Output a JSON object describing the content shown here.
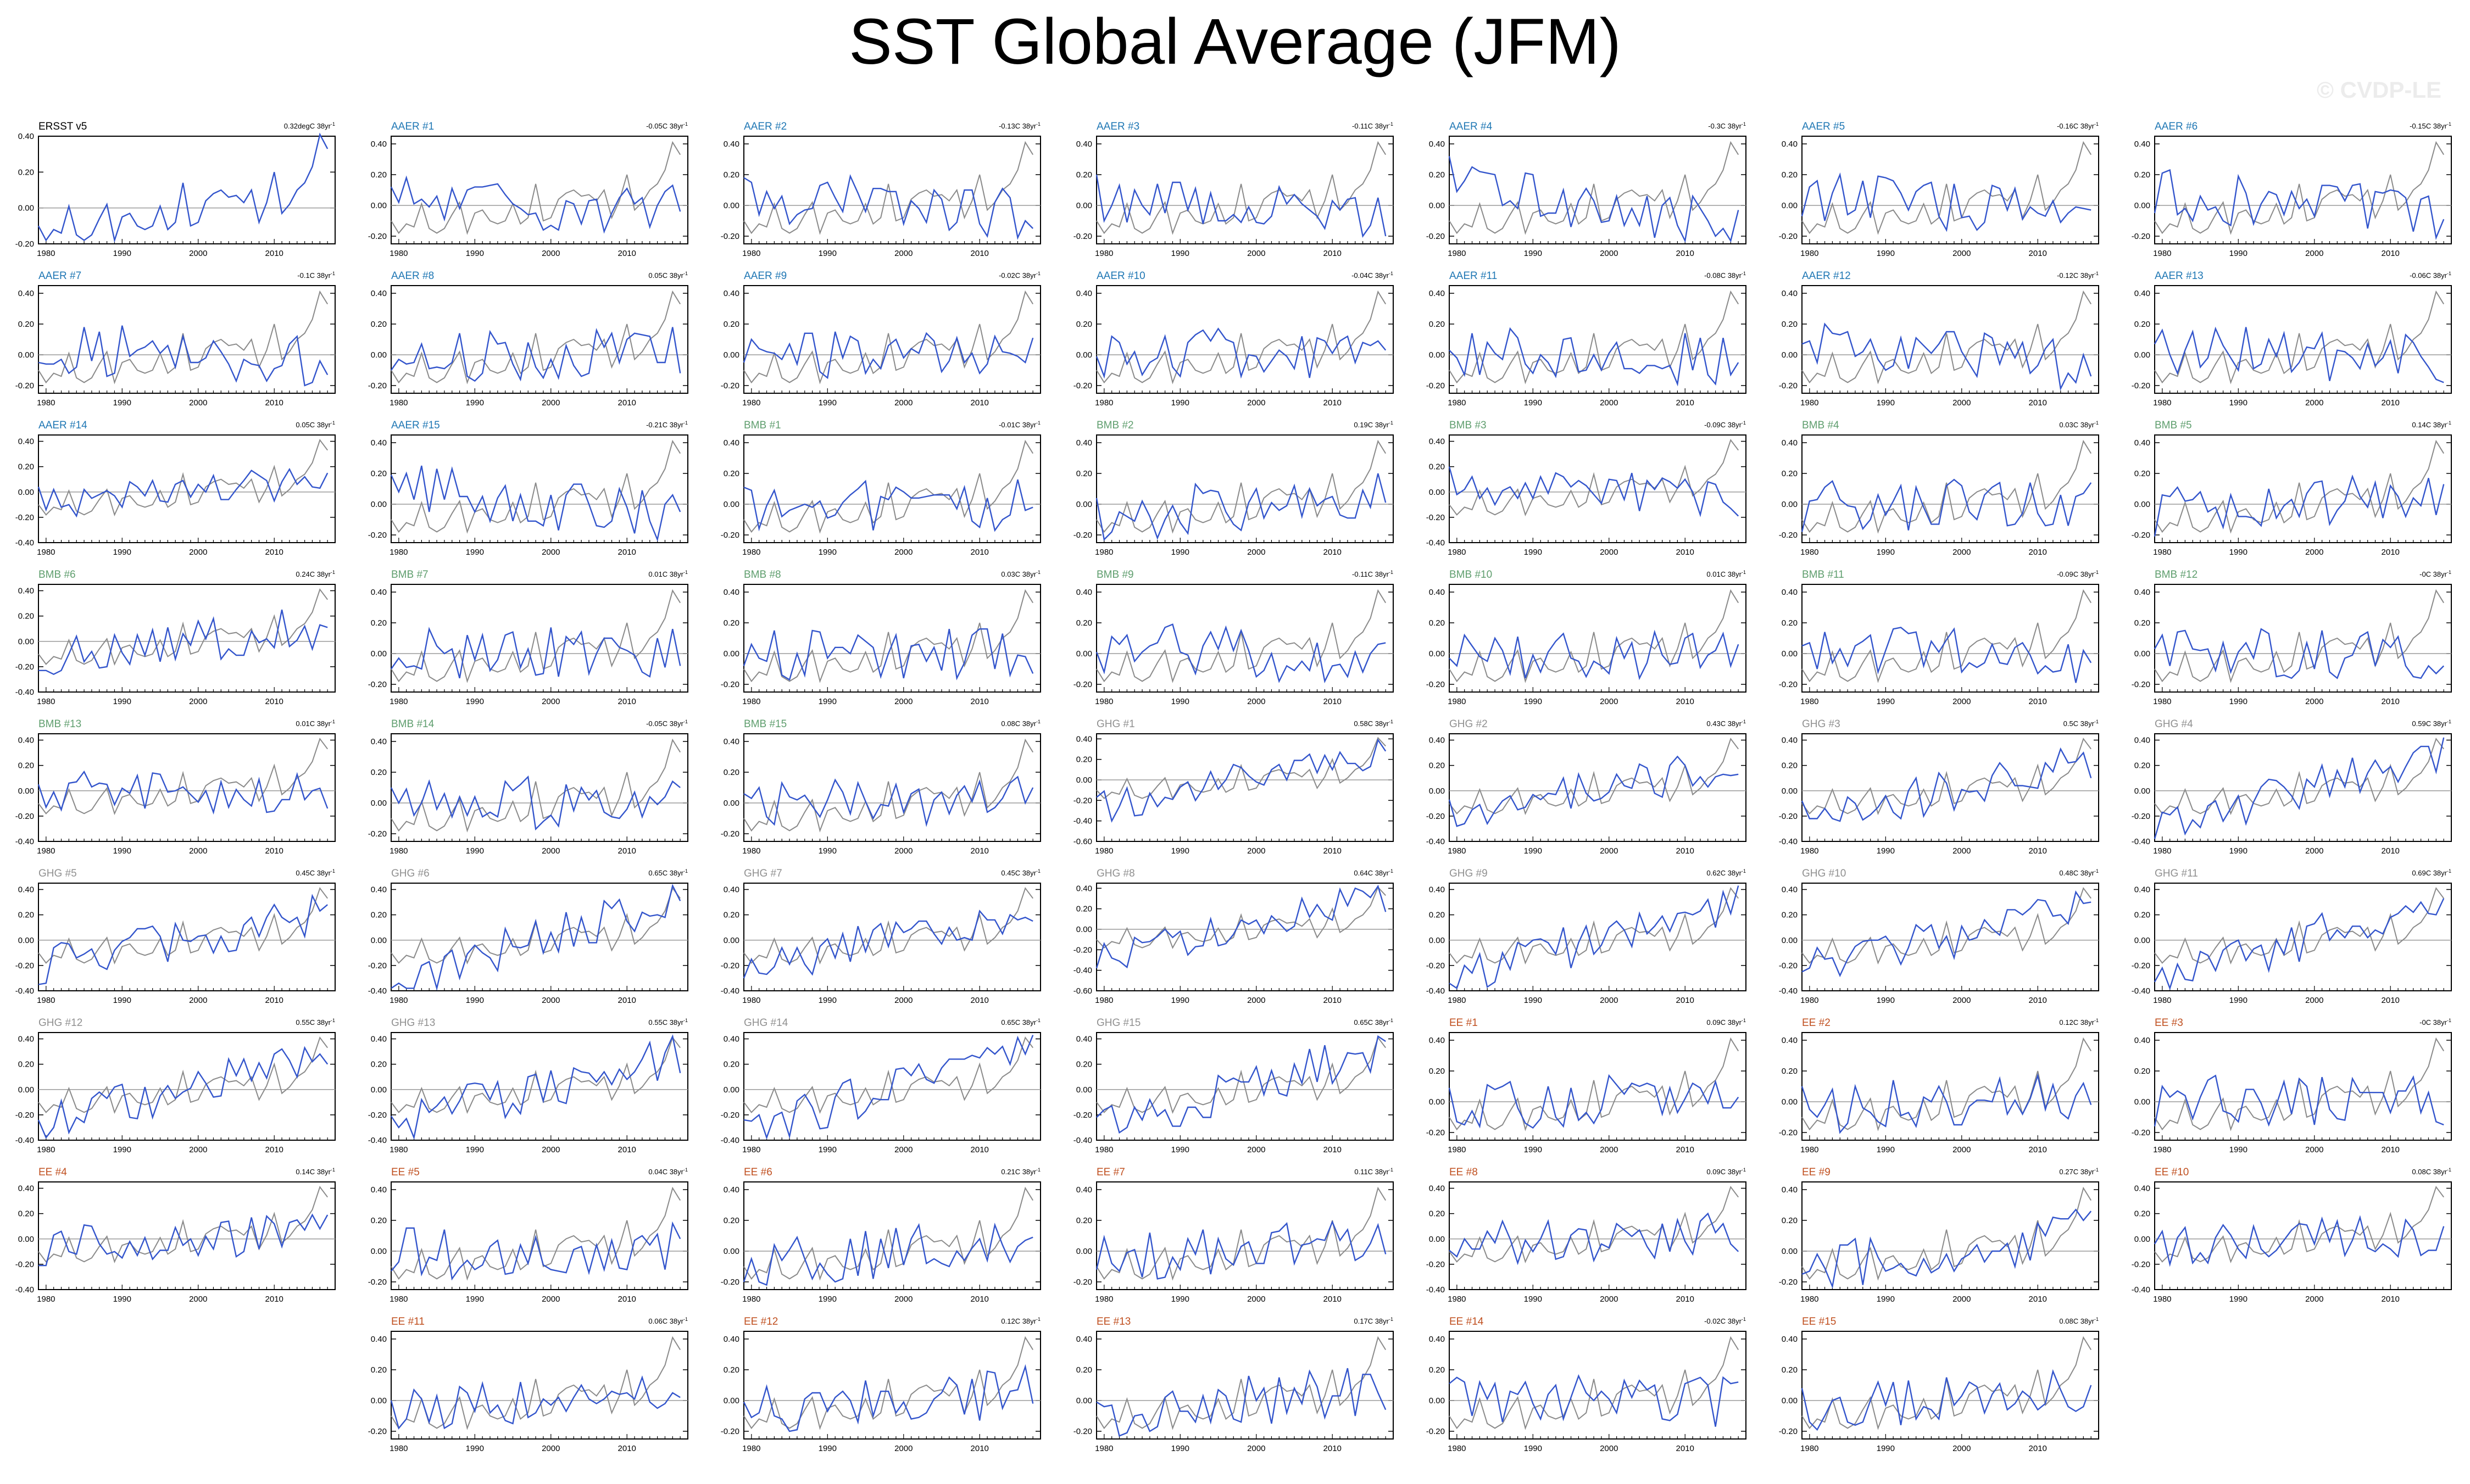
{
  "title": "SST Global Average (JFM)",
  "watermark": "© CVDP-LE",
  "colors": {
    "member": "#3355cc",
    "observed": "#8a8a8a",
    "zero_line": "#9a9a9a",
    "obs_label": "#000000",
    "aer_label": "#1f77b4",
    "bmb_label": "#5f9e6e",
    "ghg_label": "#909090",
    "ee_label": "#c05020"
  },
  "chart_data": {
    "type": "line",
    "x_ticks": [
      1980,
      1990,
      2000,
      2010
    ],
    "x_range": [
      1979,
      2018
    ],
    "observed": {
      "name": "ERSST v5",
      "x": [
        1979,
        1980,
        1981,
        1982,
        1983,
        1984,
        1985,
        1986,
        1987,
        1988,
        1989,
        1990,
        1991,
        1992,
        1993,
        1994,
        1995,
        1996,
        1997,
        1998,
        1999,
        2000,
        2001,
        2002,
        2003,
        2004,
        2005,
        2006,
        2007,
        2008,
        2009,
        2010,
        2011,
        2012,
        2013,
        2014,
        2015,
        2016,
        2017
      ],
      "y": [
        -0.1,
        -0.18,
        -0.12,
        -0.14,
        0.01,
        -0.15,
        -0.18,
        -0.15,
        -0.06,
        0.02,
        -0.18,
        -0.05,
        -0.03,
        -0.1,
        -0.12,
        -0.1,
        0.01,
        -0.12,
        -0.08,
        0.14,
        -0.1,
        -0.08,
        0.04,
        0.08,
        0.1,
        0.06,
        0.07,
        0.03,
        0.1,
        -0.08,
        0.03,
        0.2,
        -0.03,
        0.02,
        0.1,
        0.14,
        0.23,
        0.41,
        0.33
      ]
    },
    "panels": [
      {
        "label": "ERSST v5",
        "group": "OBS",
        "trend": "0.32degC 38yr",
        "ylim": [
          -0.2,
          0.4
        ],
        "yticks": [
          "0.40",
          "0.20",
          "0.00",
          "-0.20"
        ]
      },
      {
        "label": "AAER #1",
        "group": "AAER",
        "trend": "-0.05C 38yr",
        "ylim": [
          -0.25,
          0.45
        ],
        "yticks": [
          "0.40",
          "0.20",
          "0.00",
          "-0.20"
        ]
      },
      {
        "label": "AAER #2",
        "group": "AAER",
        "trend": "-0.13C 38yr",
        "ylim": [
          -0.25,
          0.45
        ],
        "yticks": [
          "0.40",
          "0.20",
          "0.00",
          "-0.20"
        ]
      },
      {
        "label": "AAER #3",
        "group": "AAER",
        "trend": "-0.11C 38yr",
        "ylim": [
          -0.25,
          0.45
        ],
        "yticks": [
          "0.40",
          "0.20",
          "0.00",
          "-0.20"
        ]
      },
      {
        "label": "AAER #4",
        "group": "AAER",
        "trend": "-0.3C 38yr",
        "ylim": [
          -0.25,
          0.45
        ],
        "yticks": [
          "0.40",
          "0.20",
          "0.00",
          "-0.20"
        ]
      },
      {
        "label": "AAER #5",
        "group": "AAER",
        "trend": "-0.16C 38yr",
        "ylim": [
          -0.25,
          0.45
        ],
        "yticks": [
          "0.40",
          "0.20",
          "0.00",
          "-0.20"
        ]
      },
      {
        "label": "AAER #6",
        "group": "AAER",
        "trend": "-0.15C 38yr",
        "ylim": [
          -0.25,
          0.45
        ],
        "yticks": [
          "0.40",
          "0.20",
          "0.00",
          "-0.20"
        ]
      },
      {
        "label": "AAER #7",
        "group": "AAER",
        "trend": "-0.1C 38yr",
        "ylim": [
          -0.25,
          0.45
        ],
        "yticks": [
          "0.40",
          "0.20",
          "0.00",
          "-0.20"
        ]
      },
      {
        "label": "AAER #8",
        "group": "AAER",
        "trend": "0.05C 38yr",
        "ylim": [
          -0.25,
          0.45
        ],
        "yticks": [
          "0.40",
          "0.20",
          "0.00",
          "-0.20"
        ]
      },
      {
        "label": "AAER #9",
        "group": "AAER",
        "trend": "-0.02C 38yr",
        "ylim": [
          -0.25,
          0.45
        ],
        "yticks": [
          "0.40",
          "0.20",
          "0.00",
          "-0.20"
        ]
      },
      {
        "label": "AAER #10",
        "group": "AAER",
        "trend": "-0.04C 38yr",
        "ylim": [
          -0.25,
          0.45
        ],
        "yticks": [
          "0.40",
          "0.20",
          "0.00",
          "-0.20"
        ]
      },
      {
        "label": "AAER #11",
        "group": "AAER",
        "trend": "-0.08C 38yr",
        "ylim": [
          -0.25,
          0.45
        ],
        "yticks": [
          "0.40",
          "0.20",
          "0.00",
          "-0.20"
        ]
      },
      {
        "label": "AAER #12",
        "group": "AAER",
        "trend": "-0.12C 38yr",
        "ylim": [
          -0.25,
          0.45
        ],
        "yticks": [
          "0.40",
          "0.20",
          "0.00",
          "-0.20"
        ]
      },
      {
        "label": "AAER #13",
        "group": "AAER",
        "trend": "-0.06C 38yr",
        "ylim": [
          -0.25,
          0.45
        ],
        "yticks": [
          "0.40",
          "0.20",
          "0.00",
          "-0.20"
        ]
      },
      {
        "label": "AAER #14",
        "group": "AAER",
        "trend": "0.05C 38yr",
        "ylim": [
          -0.4,
          0.45
        ],
        "yticks": [
          "0.40",
          "0.20",
          "0.00",
          "-0.20",
          "-0.40"
        ]
      },
      {
        "label": "AAER #15",
        "group": "AAER",
        "trend": "-0.21C 38yr",
        "ylim": [
          -0.25,
          0.45
        ],
        "yticks": [
          "0.40",
          "0.20",
          "0.00",
          "-0.20"
        ]
      },
      {
        "label": "BMB #1",
        "group": "BMB",
        "trend": "-0.01C 38yr",
        "ylim": [
          -0.25,
          0.45
        ],
        "yticks": [
          "0.40",
          "0.20",
          "0.00",
          "-0.20"
        ]
      },
      {
        "label": "BMB #2",
        "group": "BMB",
        "trend": "0.19C 38yr",
        "ylim": [
          -0.25,
          0.45
        ],
        "yticks": [
          "0.40",
          "0.20",
          "0.00",
          "-0.20"
        ]
      },
      {
        "label": "BMB #3",
        "group": "BMB",
        "trend": "-0.09C 38yr",
        "ylim": [
          -0.4,
          0.45
        ],
        "yticks": [
          "0.40",
          "0.20",
          "0.00",
          "-0.20",
          "-0.40"
        ]
      },
      {
        "label": "BMB #4",
        "group": "BMB",
        "trend": "0.03C 38yr",
        "ylim": [
          -0.25,
          0.45
        ],
        "yticks": [
          "0.40",
          "0.20",
          "0.00",
          "-0.20"
        ]
      },
      {
        "label": "BMB #5",
        "group": "BMB",
        "trend": "0.14C 38yr",
        "ylim": [
          -0.25,
          0.45
        ],
        "yticks": [
          "0.40",
          "0.20",
          "0.00",
          "-0.20"
        ]
      },
      {
        "label": "BMB #6",
        "group": "BMB",
        "trend": "0.24C 38yr",
        "ylim": [
          -0.4,
          0.45
        ],
        "yticks": [
          "0.40",
          "0.20",
          "0.00",
          "-0.20",
          "-0.40"
        ]
      },
      {
        "label": "BMB #7",
        "group": "BMB",
        "trend": "0.01C 38yr",
        "ylim": [
          -0.25,
          0.45
        ],
        "yticks": [
          "0.40",
          "0.20",
          "0.00",
          "-0.20"
        ]
      },
      {
        "label": "BMB #8",
        "group": "BMB",
        "trend": "0.03C 38yr",
        "ylim": [
          -0.25,
          0.45
        ],
        "yticks": [
          "0.40",
          "0.20",
          "0.00",
          "-0.20"
        ]
      },
      {
        "label": "BMB #9",
        "group": "BMB",
        "trend": "-0.11C 38yr",
        "ylim": [
          -0.25,
          0.45
        ],
        "yticks": [
          "0.40",
          "0.20",
          "0.00",
          "-0.20"
        ]
      },
      {
        "label": "BMB #10",
        "group": "BMB",
        "trend": "0.01C 38yr",
        "ylim": [
          -0.25,
          0.45
        ],
        "yticks": [
          "0.40",
          "0.20",
          "0.00",
          "-0.20"
        ]
      },
      {
        "label": "BMB #11",
        "group": "BMB",
        "trend": "-0.09C 38yr",
        "ylim": [
          -0.25,
          0.45
        ],
        "yticks": [
          "0.40",
          "0.20",
          "0.00",
          "-0.20"
        ]
      },
      {
        "label": "BMB #12",
        "group": "BMB",
        "trend": "-0C 38yr",
        "ylim": [
          -0.25,
          0.45
        ],
        "yticks": [
          "0.40",
          "0.20",
          "0.00",
          "-0.20"
        ]
      },
      {
        "label": "BMB #13",
        "group": "BMB",
        "trend": "0.01C 38yr",
        "ylim": [
          -0.4,
          0.45
        ],
        "yticks": [
          "0.40",
          "0.20",
          "0.00",
          "-0.20",
          "-0.40"
        ]
      },
      {
        "label": "BMB #14",
        "group": "BMB",
        "trend": "-0.05C 38yr",
        "ylim": [
          -0.25,
          0.45
        ],
        "yticks": [
          "0.40",
          "0.20",
          "0.00",
          "-0.20"
        ]
      },
      {
        "label": "BMB #15",
        "group": "BMB",
        "trend": "0.08C 38yr",
        "ylim": [
          -0.25,
          0.45
        ],
        "yticks": [
          "0.40",
          "0.20",
          "0.00",
          "-0.20"
        ]
      },
      {
        "label": "GHG #1",
        "group": "GHG",
        "trend": "0.58C 38yr",
        "ylim": [
          -0.6,
          0.45
        ],
        "yticks": [
          "0.40",
          "0.20",
          "0.00",
          "-0.20",
          "-0.40",
          "-0.60"
        ]
      },
      {
        "label": "GHG #2",
        "group": "GHG",
        "trend": "0.43C 38yr",
        "ylim": [
          -0.4,
          0.45
        ],
        "yticks": [
          "0.40",
          "0.20",
          "0.00",
          "-0.20",
          "-0.40"
        ]
      },
      {
        "label": "GHG #3",
        "group": "GHG",
        "trend": "0.5C 38yr",
        "ylim": [
          -0.4,
          0.45
        ],
        "yticks": [
          "0.40",
          "0.20",
          "0.00",
          "-0.20",
          "-0.40"
        ]
      },
      {
        "label": "GHG #4",
        "group": "GHG",
        "trend": "0.59C 38yr",
        "ylim": [
          -0.4,
          0.45
        ],
        "yticks": [
          "0.40",
          "0.20",
          "0.00",
          "-0.20",
          "-0.40"
        ]
      },
      {
        "label": "GHG #5",
        "group": "GHG",
        "trend": "0.45C 38yr",
        "ylim": [
          -0.4,
          0.45
        ],
        "yticks": [
          "0.40",
          "0.20",
          "0.00",
          "-0.20",
          "-0.40"
        ]
      },
      {
        "label": "GHG #6",
        "group": "GHG",
        "trend": "0.65C 38yr",
        "ylim": [
          -0.4,
          0.45
        ],
        "yticks": [
          "0.40",
          "0.20",
          "0.00",
          "-0.20",
          "-0.40"
        ]
      },
      {
        "label": "GHG #7",
        "group": "GHG",
        "trend": "0.45C 38yr",
        "ylim": [
          -0.4,
          0.45
        ],
        "yticks": [
          "0.40",
          "0.20",
          "0.00",
          "-0.20",
          "-0.40"
        ]
      },
      {
        "label": "GHG #8",
        "group": "GHG",
        "trend": "0.64C 38yr",
        "ylim": [
          -0.6,
          0.45
        ],
        "yticks": [
          "0.40",
          "0.20",
          "0.00",
          "-0.20",
          "-0.40",
          "-0.60"
        ]
      },
      {
        "label": "GHG #9",
        "group": "GHG",
        "trend": "0.62C 38yr",
        "ylim": [
          -0.4,
          0.45
        ],
        "yticks": [
          "0.40",
          "0.20",
          "0.00",
          "-0.20",
          "-0.40"
        ]
      },
      {
        "label": "GHG #10",
        "group": "GHG",
        "trend": "0.48C 38yr",
        "ylim": [
          -0.4,
          0.45
        ],
        "yticks": [
          "0.40",
          "0.20",
          "0.00",
          "-0.20",
          "-0.40"
        ]
      },
      {
        "label": "GHG #11",
        "group": "GHG",
        "trend": "0.69C 38yr",
        "ylim": [
          -0.4,
          0.45
        ],
        "yticks": [
          "0.40",
          "0.20",
          "0.00",
          "-0.20",
          "-0.40"
        ]
      },
      {
        "label": "GHG #12",
        "group": "GHG",
        "trend": "0.55C 38yr",
        "ylim": [
          -0.4,
          0.45
        ],
        "yticks": [
          "0.40",
          "0.20",
          "0.00",
          "-0.20",
          "-0.40"
        ]
      },
      {
        "label": "GHG #13",
        "group": "GHG",
        "trend": "0.55C 38yr",
        "ylim": [
          -0.4,
          0.45
        ],
        "yticks": [
          "0.40",
          "0.20",
          "0.00",
          "-0.20",
          "-0.40"
        ]
      },
      {
        "label": "GHG #14",
        "group": "GHG",
        "trend": "0.65C 38yr",
        "ylim": [
          -0.4,
          0.45
        ],
        "yticks": [
          "0.40",
          "0.20",
          "0.00",
          "-0.20",
          "-0.40"
        ]
      },
      {
        "label": "GHG #15",
        "group": "GHG",
        "trend": "0.65C 38yr",
        "ylim": [
          -0.4,
          0.45
        ],
        "yticks": [
          "0.40",
          "0.20",
          "0.00",
          "-0.20",
          "-0.40"
        ]
      },
      {
        "label": "EE #1",
        "group": "EE",
        "trend": "0.09C 38yr",
        "ylim": [
          -0.25,
          0.45
        ],
        "yticks": [
          "0.40",
          "0.20",
          "0.00",
          "-0.20"
        ]
      },
      {
        "label": "EE #2",
        "group": "EE",
        "trend": "0.12C 38yr",
        "ylim": [
          -0.25,
          0.45
        ],
        "yticks": [
          "0.40",
          "0.20",
          "0.00",
          "-0.20"
        ]
      },
      {
        "label": "EE #3",
        "group": "EE",
        "trend": "-0C 38yr",
        "ylim": [
          -0.25,
          0.45
        ],
        "yticks": [
          "0.40",
          "0.20",
          "0.00",
          "-0.20"
        ]
      },
      {
        "label": "EE #4",
        "group": "EE",
        "trend": "0.14C 38yr",
        "ylim": [
          -0.4,
          0.45
        ],
        "yticks": [
          "0.40",
          "0.20",
          "0.00",
          "-0.20",
          "-0.40"
        ]
      },
      {
        "label": "EE #5",
        "group": "EE",
        "trend": "0.04C 38yr",
        "ylim": [
          -0.25,
          0.45
        ],
        "yticks": [
          "0.40",
          "0.20",
          "0.00",
          "-0.20"
        ]
      },
      {
        "label": "EE #6",
        "group": "EE",
        "trend": "0.21C 38yr",
        "ylim": [
          -0.25,
          0.45
        ],
        "yticks": [
          "0.40",
          "0.20",
          "0.00",
          "-0.20"
        ]
      },
      {
        "label": "EE #7",
        "group": "EE",
        "trend": "0.11C 38yr",
        "ylim": [
          -0.25,
          0.45
        ],
        "yticks": [
          "0.40",
          "0.20",
          "0.00",
          "-0.20"
        ]
      },
      {
        "label": "EE #8",
        "group": "EE",
        "trend": "0.09C 38yr",
        "ylim": [
          -0.4,
          0.45
        ],
        "yticks": [
          "0.40",
          "0.20",
          "0.00",
          "-0.20",
          "-0.40"
        ]
      },
      {
        "label": "EE #9",
        "group": "EE",
        "trend": "0.27C 38yr",
        "ylim": [
          -0.25,
          0.45
        ],
        "yticks": [
          "0.40",
          "0.20",
          "0.00",
          "-0.20"
        ]
      },
      {
        "label": "EE #10",
        "group": "EE",
        "trend": "0.08C 38yr",
        "ylim": [
          -0.4,
          0.45
        ],
        "yticks": [
          "0.40",
          "0.20",
          "0.00",
          "-0.20",
          "-0.40"
        ]
      },
      {
        "label": "EE #11",
        "group": "EE",
        "trend": "0.06C 38yr",
        "ylim": [
          -0.25,
          0.45
        ],
        "yticks": [
          "0.40",
          "0.20",
          "0.00",
          "-0.20"
        ]
      },
      {
        "label": "EE #12",
        "group": "EE",
        "trend": "0.12C 38yr",
        "ylim": [
          -0.25,
          0.45
        ],
        "yticks": [
          "0.40",
          "0.20",
          "0.00",
          "-0.20"
        ]
      },
      {
        "label": "EE #13",
        "group": "EE",
        "trend": "0.17C 38yr",
        "ylim": [
          -0.25,
          0.45
        ],
        "yticks": [
          "0.40",
          "0.20",
          "0.00",
          "-0.20"
        ]
      },
      {
        "label": "EE #14",
        "group": "EE",
        "trend": "-0.02C 38yr",
        "ylim": [
          -0.25,
          0.45
        ],
        "yticks": [
          "0.40",
          "0.20",
          "0.00",
          "-0.20"
        ]
      },
      {
        "label": "EE #15",
        "group": "EE",
        "trend": "0.08C 38yr",
        "ylim": [
          -0.25,
          0.45
        ],
        "yticks": [
          "0.40",
          "0.20",
          "0.00",
          "-0.20"
        ]
      }
    ]
  }
}
